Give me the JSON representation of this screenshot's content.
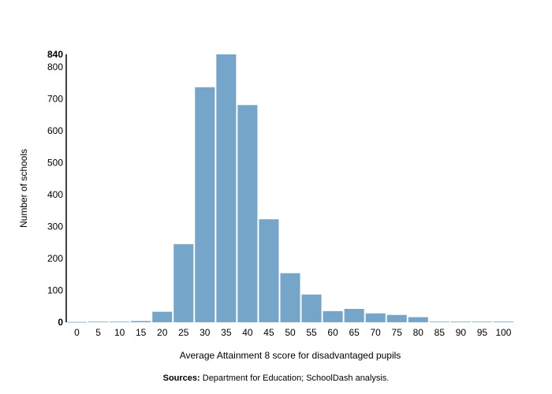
{
  "chart_data": {
    "type": "bar",
    "categories": [
      "0",
      "5",
      "10",
      "15",
      "20",
      "25",
      "30",
      "35",
      "40",
      "45",
      "50",
      "55",
      "60",
      "65",
      "70",
      "75",
      "80",
      "85",
      "90",
      "95",
      "100"
    ],
    "values": [
      1,
      2,
      2,
      4,
      33,
      245,
      737,
      840,
      681,
      323,
      154,
      87,
      35,
      42,
      28,
      23,
      16,
      2,
      2,
      2,
      2
    ],
    "xlabel": "Average Attainment 8 score for disadvantaged pupils",
    "ylabel": "Number of schools",
    "ylim": [
      0,
      840
    ],
    "yticks": [
      0,
      100,
      200,
      300,
      400,
      500,
      600,
      700,
      800,
      840
    ],
    "bold_yticks": [
      0,
      840
    ],
    "bar_color": "#75a5c8",
    "grid": false,
    "legend": "none"
  },
  "footer": {
    "sources_label": "Sources:",
    "sources_text": " Department for Education; SchoolDash analysis."
  }
}
